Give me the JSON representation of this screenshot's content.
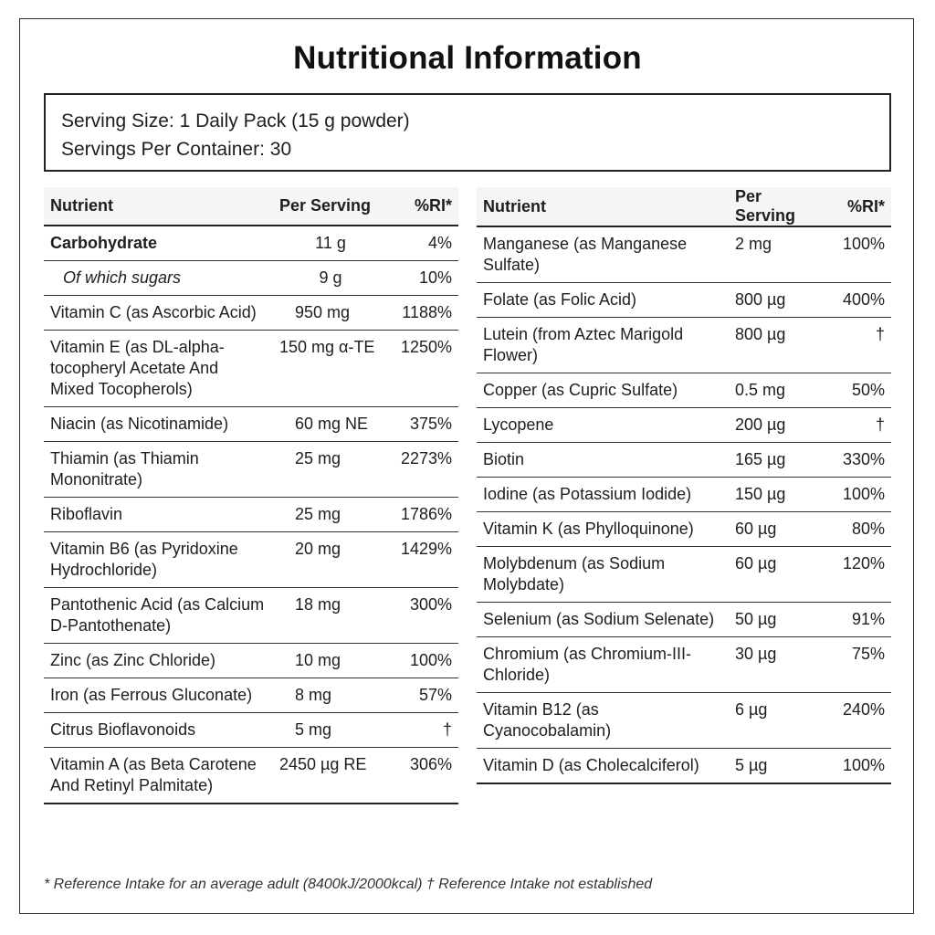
{
  "title": "Nutritional Information",
  "serving": {
    "size": "Serving Size: 1 Daily Pack (15 g powder)",
    "per_container": "Servings Per Container: 30"
  },
  "headers": {
    "nutrient": "Nutrient",
    "per_serving": "Per Serving",
    "ri": "%RI*"
  },
  "left_rows": [
    {
      "nutrient": "Carbohydrate",
      "amount": "11 g",
      "ri": "4%"
    },
    {
      "nutrient": "Of which sugars",
      "amount": "9 g",
      "ri": "10%"
    },
    {
      "nutrient": "Vitamin C (as Ascorbic Acid)",
      "amount": "950 mg",
      "ri": "1188%"
    },
    {
      "nutrient": "Vitamin E (as DL-alpha-tocopheryl Acetate And Mixed Tocopherols)",
      "amount": "150 mg α-TE",
      "ri": "1250%"
    },
    {
      "nutrient": "Niacin (as Nicotinamide)",
      "amount": "60 mg NE",
      "ri": "375%"
    },
    {
      "nutrient": "Thiamin (as Thiamin Mononitrate)",
      "amount": "25 mg",
      "ri": "2273%"
    },
    {
      "nutrient": "Riboflavin",
      "amount": "25 mg",
      "ri": "1786%"
    },
    {
      "nutrient": "Vitamin B6 (as Pyridoxine Hydrochloride)",
      "amount": "20 mg",
      "ri": "1429%"
    },
    {
      "nutrient": "Pantothenic Acid (as Calcium D-Pantothenate)",
      "amount": "18 mg",
      "ri": "300%"
    },
    {
      "nutrient": "Zinc (as Zinc Chloride)",
      "amount": "10 mg",
      "ri": "100%"
    },
    {
      "nutrient": "Iron (as Ferrous Gluconate)",
      "amount": "8 mg",
      "ri": "57%"
    },
    {
      "nutrient": "Citrus Bioflavonoids",
      "amount": "5 mg",
      "ri": "†"
    },
    {
      "nutrient": "Vitamin A (as Beta Carotene And Retinyl Palmitate)",
      "amount": "2450 µg RE",
      "ri": "306%"
    }
  ],
  "right_rows": [
    {
      "nutrient": "Manganese (as Manganese Sulfate)",
      "amount": "2 mg",
      "ri": "100%"
    },
    {
      "nutrient": "Folate (as Folic Acid)",
      "amount": "800 µg",
      "ri": "400%"
    },
    {
      "nutrient": "Lutein (from Aztec Marigold Flower)",
      "amount": "800 µg",
      "ri": "†"
    },
    {
      "nutrient": "Copper (as Cupric Sulfate)",
      "amount": "0.5 mg",
      "ri": "50%"
    },
    {
      "nutrient": "Lycopene",
      "amount": "200 µg",
      "ri": "†"
    },
    {
      "nutrient": "Biotin",
      "amount": "165 µg",
      "ri": "330%"
    },
    {
      "nutrient": "Iodine (as Potassium Iodide)",
      "amount": "150 µg",
      "ri": "100%"
    },
    {
      "nutrient": "Vitamin K (as Phylloquinone)",
      "amount": "60 µg",
      "ri": "80%"
    },
    {
      "nutrient": "Molybdenum (as Sodium Molybdate)",
      "amount": "60 µg",
      "ri": "120%"
    },
    {
      "nutrient": "Selenium (as Sodium Selenate)",
      "amount": "50 µg",
      "ri": "91%"
    },
    {
      "nutrient": "Chromium (as Chromium-III-Chloride)",
      "amount": "30 µg",
      "ri": "75%"
    },
    {
      "nutrient": "Vitamin B12 (as Cyanocobalamin)",
      "amount": "6 µg",
      "ri": "240%"
    },
    {
      "nutrient": "Vitamin D (as Cholecalciferol)",
      "amount": "5 µg",
      "ri": "100%"
    }
  ],
  "footnote": "* Reference Intake for an average adult (8400kJ/2000kcal) † Reference Intake not established"
}
